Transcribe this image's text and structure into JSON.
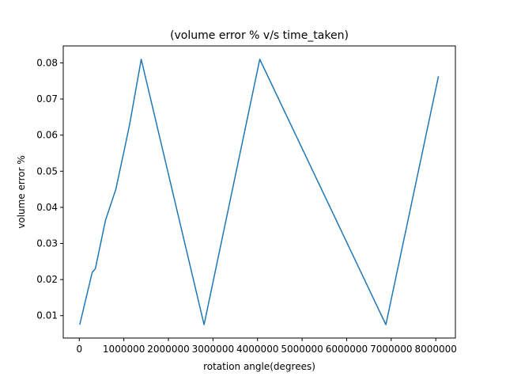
{
  "chart_data": {
    "type": "line",
    "title": "(volume error % v/s time_taken)",
    "xlabel": "rotation angle(degrees)",
    "ylabel": "volume error %",
    "xlim": [
      -360000,
      8440000
    ],
    "ylim": [
      0.0038,
      0.0847
    ],
    "xticks": [
      0,
      1000000,
      2000000,
      3000000,
      4000000,
      5000000,
      6000000,
      7000000,
      8000000
    ],
    "xtick_labels": [
      "0",
      "1000000",
      "2000000",
      "3000000",
      "4000000",
      "5000000",
      "6000000",
      "7000000",
      "8000000"
    ],
    "yticks": [
      0.01,
      0.02,
      0.03,
      0.04,
      0.05,
      0.06,
      0.07,
      0.08
    ],
    "ytick_labels": [
      "0.01",
      "0.02",
      "0.03",
      "0.04",
      "0.05",
      "0.06",
      "0.07",
      "0.08"
    ],
    "grid": false,
    "color": "#1f77b4",
    "series": [
      {
        "x": [
          10000,
          290000,
          360000,
          590000,
          820000,
          1020000,
          1130000,
          1390000,
          2800000,
          4050000,
          6880000,
          8060000
        ],
        "y": [
          0.0075,
          0.022,
          0.023,
          0.0365,
          0.045,
          0.0565,
          0.063,
          0.081,
          0.0075,
          0.081,
          0.0075,
          0.0763
        ]
      }
    ]
  }
}
